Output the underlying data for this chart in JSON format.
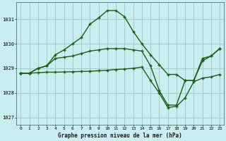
{
  "title": "Graphe pression niveau de la mer (hPa)",
  "background_color": "#c8eef0",
  "grid_color": "#9ecece",
  "line_color": "#1a5c1a",
  "xlim": [
    -0.5,
    23.5
  ],
  "ylim": [
    1026.7,
    1031.7
  ],
  "yticks": [
    1027,
    1028,
    1029,
    1030,
    1031
  ],
  "xticks": [
    0,
    1,
    2,
    3,
    4,
    5,
    6,
    7,
    8,
    9,
    10,
    11,
    12,
    13,
    14,
    15,
    16,
    17,
    18,
    19,
    20,
    21,
    22,
    23
  ],
  "series1_x": [
    0,
    1,
    2,
    3,
    4,
    5,
    6,
    7,
    8,
    9,
    10,
    11,
    12,
    13,
    14,
    15,
    16,
    17,
    18,
    19,
    20,
    21,
    22,
    23
  ],
  "series1_y": [
    1028.8,
    1028.8,
    1029.0,
    1029.1,
    1029.55,
    1029.75,
    1030.0,
    1030.25,
    1030.8,
    1031.05,
    1031.35,
    1031.35,
    1031.1,
    1030.5,
    1030.0,
    1029.55,
    1029.15,
    1028.75,
    1028.75,
    1028.5,
    1028.5,
    1029.4,
    1029.5,
    1029.8
  ],
  "series2_x": [
    0,
    1,
    2,
    3,
    4,
    5,
    6,
    7,
    8,
    9,
    10,
    11,
    12,
    13,
    14,
    15,
    16,
    17,
    18,
    19,
    20,
    21,
    22,
    23
  ],
  "series2_y": [
    1028.8,
    1028.8,
    1029.0,
    1029.1,
    1029.4,
    1029.45,
    1029.5,
    1029.6,
    1029.7,
    1029.75,
    1029.8,
    1029.8,
    1029.8,
    1029.75,
    1029.7,
    1029.1,
    1028.1,
    1027.5,
    1027.5,
    1028.5,
    1028.5,
    1029.3,
    1029.5,
    1029.8
  ],
  "series3_x": [
    0,
    1,
    2,
    3,
    4,
    5,
    6,
    7,
    8,
    9,
    10,
    11,
    12,
    13,
    14,
    15,
    16,
    17,
    18,
    19,
    20,
    21,
    22,
    23
  ],
  "series3_y": [
    1028.8,
    1028.8,
    1028.82,
    1028.84,
    1028.84,
    1028.85,
    1028.86,
    1028.87,
    1028.88,
    1028.9,
    1028.92,
    1028.95,
    1028.97,
    1029.0,
    1029.05,
    1028.5,
    1028.0,
    1027.4,
    1027.45,
    1027.8,
    1028.45,
    1028.6,
    1028.65,
    1028.75
  ]
}
